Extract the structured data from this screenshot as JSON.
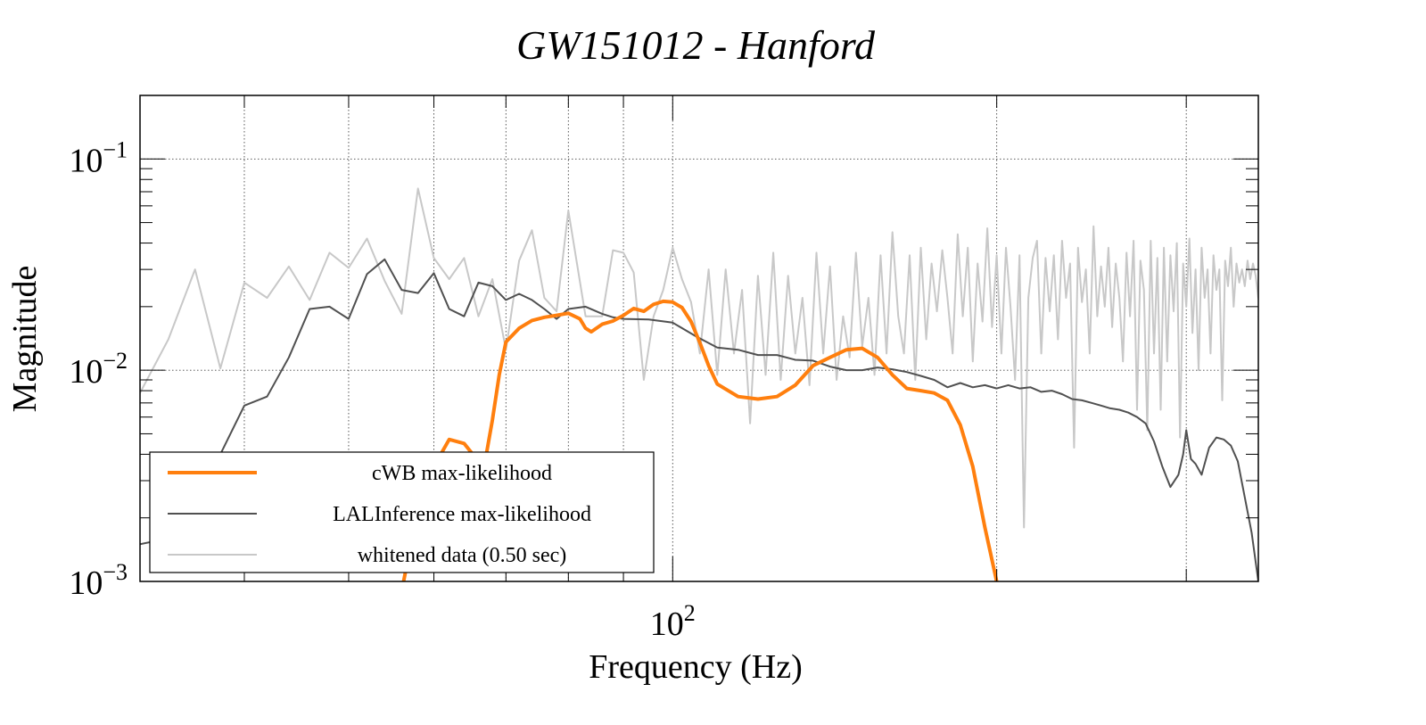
{
  "chart_data": {
    "type": "line",
    "title": "GW151012 - Hanford",
    "xlabel": "Frequency (Hz)",
    "ylabel": "Magnitude",
    "x_scale": "log",
    "y_scale": "log",
    "xlim": [
      32,
      350
    ],
    "ylim": [
      0.001,
      0.2
    ],
    "grid": true,
    "legend_position": "bottom-left",
    "x_ticks": [
      {
        "value": 100,
        "base": "10",
        "exp": "2"
      }
    ],
    "y_ticks": [
      {
        "value": 0.001,
        "base": "10",
        "exp": "−3"
      },
      {
        "value": 0.01,
        "base": "10",
        "exp": "−2"
      },
      {
        "value": 0.1,
        "base": "10",
        "exp": "−1"
      }
    ],
    "x_grid": [
      40,
      50,
      60,
      70,
      80,
      90,
      100,
      200,
      300
    ],
    "series": [
      {
        "name": "whitened data (0.50 sec)",
        "color": "#c8c8c8",
        "width": 2,
        "points": [
          [
            32,
            0.0078
          ],
          [
            34,
            0.014
          ],
          [
            36,
            0.03
          ],
          [
            38,
            0.0102
          ],
          [
            40,
            0.026
          ],
          [
            42,
            0.022
          ],
          [
            44,
            0.031
          ],
          [
            46,
            0.0215
          ],
          [
            48,
            0.036
          ],
          [
            50,
            0.0305
          ],
          [
            52,
            0.042
          ],
          [
            54,
            0.0265
          ],
          [
            56,
            0.0185
          ],
          [
            58,
            0.0725
          ],
          [
            60,
            0.034
          ],
          [
            62,
            0.027
          ],
          [
            64,
            0.034
          ],
          [
            66,
            0.018
          ],
          [
            68,
            0.027
          ],
          [
            70,
            0.0125
          ],
          [
            72,
            0.033
          ],
          [
            74,
            0.046
          ],
          [
            76,
            0.022
          ],
          [
            78,
            0.019
          ],
          [
            80,
            0.057
          ],
          [
            83,
            0.018
          ],
          [
            86,
            0.018
          ],
          [
            88,
            0.037
          ],
          [
            90,
            0.036
          ],
          [
            92,
            0.029
          ],
          [
            94,
            0.009
          ],
          [
            96,
            0.018
          ],
          [
            98,
            0.024
          ],
          [
            100,
            0.038
          ],
          [
            102,
            0.027
          ],
          [
            104,
            0.021
          ],
          [
            106,
            0.012
          ],
          [
            108,
            0.03
          ],
          [
            110,
            0.0095
          ],
          [
            112,
            0.03
          ],
          [
            114,
            0.012
          ],
          [
            116,
            0.024
          ],
          [
            118,
            0.0056
          ],
          [
            120,
            0.028
          ],
          [
            122,
            0.0095
          ],
          [
            124,
            0.036
          ],
          [
            126,
            0.009
          ],
          [
            128,
            0.028
          ],
          [
            130,
            0.012
          ],
          [
            132,
            0.022
          ],
          [
            134,
            0.0085
          ],
          [
            136,
            0.036
          ],
          [
            138,
            0.012
          ],
          [
            140,
            0.031
          ],
          [
            142,
            0.009
          ],
          [
            144,
            0.018
          ],
          [
            146,
            0.0115
          ],
          [
            148,
            0.036
          ],
          [
            150,
            0.013
          ],
          [
            152,
            0.022
          ],
          [
            154,
            0.0095
          ],
          [
            156,
            0.035
          ],
          [
            158,
            0.012
          ],
          [
            160,
            0.045
          ],
          [
            162,
            0.018
          ],
          [
            164,
            0.012
          ],
          [
            166,
            0.035
          ],
          [
            168,
            0.009
          ],
          [
            170,
            0.038
          ],
          [
            172,
            0.014
          ],
          [
            174,
            0.032
          ],
          [
            176,
            0.019
          ],
          [
            178,
            0.037
          ],
          [
            180,
            0.022
          ],
          [
            182,
            0.012
          ],
          [
            184,
            0.044
          ],
          [
            186,
            0.018
          ],
          [
            188,
            0.038
          ],
          [
            190,
            0.011
          ],
          [
            192,
            0.032
          ],
          [
            194,
            0.017
          ],
          [
            196,
            0.047
          ],
          [
            198,
            0.016
          ],
          [
            200,
            0.035
          ],
          [
            202,
            0.012
          ],
          [
            204,
            0.038
          ],
          [
            206,
            0.02
          ],
          [
            208,
            0.009
          ],
          [
            210,
            0.035
          ],
          [
            212,
            0.0018
          ],
          [
            214,
            0.022
          ],
          [
            216,
            0.034
          ],
          [
            218,
            0.041
          ],
          [
            220,
            0.012
          ],
          [
            222,
            0.034
          ],
          [
            224,
            0.019
          ],
          [
            226,
            0.035
          ],
          [
            228,
            0.014
          ],
          [
            230,
            0.041
          ],
          [
            232,
            0.022
          ],
          [
            234,
            0.032
          ],
          [
            236,
            0.0043
          ],
          [
            238,
            0.038
          ],
          [
            240,
            0.021
          ],
          [
            242,
            0.03
          ],
          [
            244,
            0.012
          ],
          [
            246,
            0.048
          ],
          [
            248,
            0.018
          ],
          [
            250,
            0.031
          ],
          [
            252,
            0.02
          ],
          [
            254,
            0.038
          ],
          [
            256,
            0.016
          ],
          [
            258,
            0.032
          ],
          [
            260,
            0.022
          ],
          [
            262,
            0.011
          ],
          [
            264,
            0.036
          ],
          [
            266,
            0.018
          ],
          [
            268,
            0.041
          ],
          [
            270,
            0.0065
          ],
          [
            272,
            0.033
          ],
          [
            274,
            0.024
          ],
          [
            276,
            0.0052
          ],
          [
            278,
            0.041
          ],
          [
            280,
            0.012
          ],
          [
            282,
            0.034
          ],
          [
            284,
            0.0065
          ],
          [
            286,
            0.038
          ],
          [
            288,
            0.011
          ],
          [
            290,
            0.035
          ],
          [
            292,
            0.019
          ],
          [
            294,
            0.04
          ],
          [
            296,
            0.0048
          ],
          [
            298,
            0.032
          ],
          [
            300,
            0.02
          ],
          [
            302,
            0.042
          ],
          [
            304,
            0.015
          ],
          [
            306,
            0.03
          ],
          [
            308,
            0.01
          ],
          [
            310,
            0.038
          ],
          [
            312,
            0.022
          ],
          [
            314,
            0.03
          ],
          [
            316,
            0.012
          ],
          [
            318,
            0.035
          ],
          [
            320,
            0.024
          ],
          [
            322,
            0.03
          ],
          [
            324,
            0.0072
          ],
          [
            326,
            0.033
          ],
          [
            328,
            0.025
          ],
          [
            330,
            0.038
          ],
          [
            332,
            0.02
          ],
          [
            334,
            0.032
          ],
          [
            336,
            0.026
          ],
          [
            338,
            0.03
          ],
          [
            340,
            0.025
          ],
          [
            342,
            0.033
          ],
          [
            344,
            0.027
          ],
          [
            346,
            0.032
          ],
          [
            348,
            0.028
          ],
          [
            350,
            0.022
          ]
        ]
      },
      {
        "name": "LALInference max-likelihood",
        "color": "#505050",
        "width": 2,
        "points": [
          [
            32,
            0.0015
          ],
          [
            34,
            0.0016
          ],
          [
            36,
            0.0025
          ],
          [
            38,
            0.004
          ],
          [
            40,
            0.0068
          ],
          [
            42,
            0.0075
          ],
          [
            44,
            0.0115
          ],
          [
            46,
            0.0195
          ],
          [
            48,
            0.02
          ],
          [
            50,
            0.0175
          ],
          [
            52,
            0.0285
          ],
          [
            54,
            0.0335
          ],
          [
            56,
            0.024
          ],
          [
            58,
            0.0232
          ],
          [
            60,
            0.0288
          ],
          [
            62,
            0.0195
          ],
          [
            64,
            0.018
          ],
          [
            66,
            0.026
          ],
          [
            68,
            0.025
          ],
          [
            70,
            0.0215
          ],
          [
            72,
            0.023
          ],
          [
            74,
            0.0215
          ],
          [
            76,
            0.0195
          ],
          [
            78,
            0.0175
          ],
          [
            80,
            0.0195
          ],
          [
            83,
            0.02
          ],
          [
            86,
            0.0185
          ],
          [
            88,
            0.0178
          ],
          [
            90,
            0.0175
          ],
          [
            95,
            0.0174
          ],
          [
            100,
            0.0168
          ],
          [
            105,
            0.0145
          ],
          [
            110,
            0.0128
          ],
          [
            115,
            0.0125
          ],
          [
            120,
            0.0118
          ],
          [
            125,
            0.0118
          ],
          [
            130,
            0.0112
          ],
          [
            135,
            0.0111
          ],
          [
            140,
            0.0104
          ],
          [
            145,
            0.01
          ],
          [
            150,
            0.01
          ],
          [
            155,
            0.0103
          ],
          [
            160,
            0.0101
          ],
          [
            165,
            0.0098
          ],
          [
            170,
            0.0094
          ],
          [
            175,
            0.009
          ],
          [
            180,
            0.0083
          ],
          [
            185,
            0.0087
          ],
          [
            190,
            0.0083
          ],
          [
            195,
            0.0085
          ],
          [
            200,
            0.0082
          ],
          [
            205,
            0.0085
          ],
          [
            210,
            0.0082
          ],
          [
            215,
            0.0083
          ],
          [
            220,
            0.0079
          ],
          [
            225,
            0.008
          ],
          [
            230,
            0.0077
          ],
          [
            235,
            0.0073
          ],
          [
            240,
            0.0072
          ],
          [
            245,
            0.007
          ],
          [
            250,
            0.0068
          ],
          [
            255,
            0.0066
          ],
          [
            260,
            0.0065
          ],
          [
            265,
            0.0063
          ],
          [
            270,
            0.006
          ],
          [
            275,
            0.0056
          ],
          [
            280,
            0.0046
          ],
          [
            285,
            0.0035
          ],
          [
            290,
            0.0028
          ],
          [
            295,
            0.0032
          ],
          [
            298,
            0.004
          ],
          [
            300,
            0.0052
          ],
          [
            303,
            0.0038
          ],
          [
            306,
            0.0036
          ],
          [
            310,
            0.0032
          ],
          [
            315,
            0.0043
          ],
          [
            320,
            0.0048
          ],
          [
            325,
            0.0047
          ],
          [
            330,
            0.0044
          ],
          [
            335,
            0.0037
          ],
          [
            340,
            0.0025
          ],
          [
            345,
            0.0017
          ],
          [
            350,
            0.001
          ]
        ]
      },
      {
        "name": "cWB max-likelihood",
        "color": "#ff7f0e",
        "width": 4,
        "points": [
          [
            56,
            0.0009
          ],
          [
            58,
            0.0022
          ],
          [
            60,
            0.0035
          ],
          [
            62,
            0.0047
          ],
          [
            64,
            0.0045
          ],
          [
            66,
            0.0037
          ],
          [
            67,
            0.0038
          ],
          [
            68,
            0.0058
          ],
          [
            69,
            0.0095
          ],
          [
            70,
            0.0136
          ],
          [
            72,
            0.0158
          ],
          [
            74,
            0.0172
          ],
          [
            76,
            0.0178
          ],
          [
            78,
            0.0182
          ],
          [
            80,
            0.0186
          ],
          [
            82,
            0.0175
          ],
          [
            83,
            0.0158
          ],
          [
            84,
            0.0152
          ],
          [
            86,
            0.0165
          ],
          [
            88,
            0.0171
          ],
          [
            90,
            0.0182
          ],
          [
            92,
            0.0196
          ],
          [
            94,
            0.019
          ],
          [
            96,
            0.0205
          ],
          [
            98,
            0.0212
          ],
          [
            100,
            0.021
          ],
          [
            102,
            0.0198
          ],
          [
            104,
            0.017
          ],
          [
            106,
            0.0135
          ],
          [
            108,
            0.0105
          ],
          [
            110,
            0.0086
          ],
          [
            115,
            0.0075
          ],
          [
            120,
            0.0073
          ],
          [
            125,
            0.0075
          ],
          [
            130,
            0.0085
          ],
          [
            135,
            0.0105
          ],
          [
            140,
            0.0115
          ],
          [
            145,
            0.0125
          ],
          [
            150,
            0.0127
          ],
          [
            155,
            0.0115
          ],
          [
            160,
            0.0095
          ],
          [
            165,
            0.0082
          ],
          [
            170,
            0.008
          ],
          [
            175,
            0.0078
          ],
          [
            180,
            0.0072
          ],
          [
            185,
            0.0055
          ],
          [
            190,
            0.0035
          ],
          [
            195,
            0.0018
          ],
          [
            200,
            0.001
          ]
        ]
      }
    ]
  }
}
